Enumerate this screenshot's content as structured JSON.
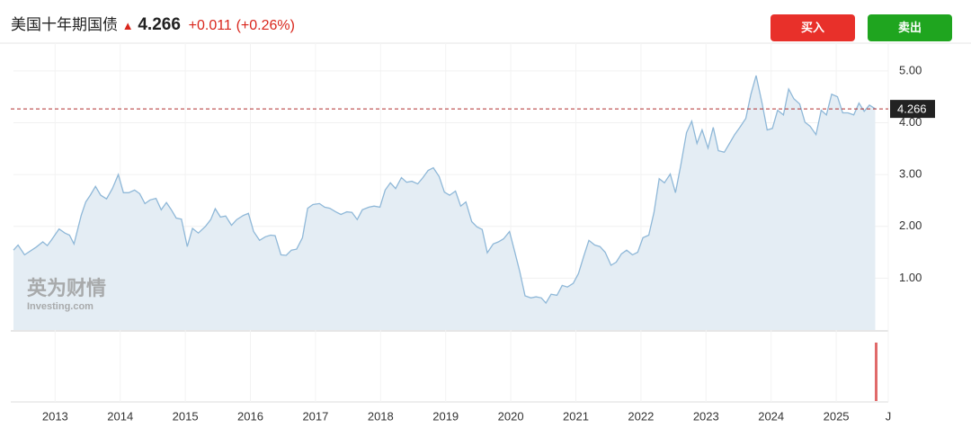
{
  "header": {
    "title": "美国十年期国债",
    "change": "+0.011",
    "change_pct": "(+0.26%)",
    "buy": "买入",
    "sell": "卖出"
  },
  "watermark": {
    "brand": "英为财情",
    "site": "Investing.com"
  },
  "chart_data": {
    "type": "area",
    "color": "#8fb8d8",
    "fill": "#e4edf4",
    "grid": true,
    "last_value": 4.266,
    "xlim": [
      2012.36,
      2025.8
    ],
    "ylim": [
      0,
      5.5
    ],
    "xticks": [
      2013,
      2014,
      2015,
      2016,
      2017,
      2018,
      2019,
      2020,
      2021,
      2022,
      2023,
      2024,
      2025,
      {
        "value": 2025.8,
        "label": "J"
      }
    ],
    "yticks": [
      {
        "value": 1,
        "label": "1.00"
      },
      {
        "value": 2,
        "label": "2.00"
      },
      {
        "value": 3,
        "label": "3.00"
      },
      {
        "value": 4,
        "label": "4.00"
      },
      {
        "value": 5,
        "label": "5.00"
      }
    ],
    "x": [
      2012.36,
      2012.43,
      2012.53,
      2012.71,
      2012.81,
      2012.88,
      2012.94,
      2013.06,
      2013.15,
      2013.22,
      2013.29,
      2013.4,
      2013.47,
      2013.54,
      2013.62,
      2013.7,
      2013.79,
      2013.88,
      2013.97,
      2014.05,
      2014.13,
      2014.22,
      2014.3,
      2014.38,
      2014.46,
      2014.55,
      2014.63,
      2014.71,
      2014.78,
      2014.86,
      2014.94,
      2015.03,
      2015.11,
      2015.2,
      2015.31,
      2015.39,
      2015.46,
      2015.54,
      2015.62,
      2015.71,
      2015.79,
      2015.89,
      2015.97,
      2016.05,
      2016.14,
      2016.23,
      2016.31,
      2016.38,
      2016.47,
      2016.55,
      2016.63,
      2016.71,
      2016.8,
      2016.88,
      2016.96,
      2017.06,
      2017.14,
      2017.22,
      2017.31,
      2017.39,
      2017.48,
      2017.56,
      2017.64,
      2017.72,
      2017.82,
      2017.9,
      2017.99,
      2018.07,
      2018.15,
      2018.23,
      2018.32,
      2018.4,
      2018.48,
      2018.57,
      2018.65,
      2018.73,
      2018.81,
      2018.9,
      2018.98,
      2019.06,
      2019.15,
      2019.23,
      2019.31,
      2019.4,
      2019.48,
      2019.56,
      2019.64,
      2019.73,
      2019.81,
      2019.89,
      2019.98,
      2020.06,
      2020.14,
      2020.22,
      2020.31,
      2020.39,
      2020.47,
      2020.54,
      2020.62,
      2020.71,
      2020.79,
      2020.87,
      2020.96,
      2021.04,
      2021.12,
      2021.2,
      2021.29,
      2021.37,
      2021.45,
      2021.54,
      2021.62,
      2021.7,
      2021.78,
      2021.87,
      2021.95,
      2022.03,
      2022.12,
      2022.2,
      2022.28,
      2022.36,
      2022.45,
      2022.53,
      2022.61,
      2022.7,
      2022.78,
      2022.86,
      2022.94,
      2023.03,
      2023.11,
      2023.19,
      2023.28,
      2023.36,
      2023.44,
      2023.52,
      2023.61,
      2023.69,
      2023.77,
      2023.86,
      2023.94,
      2024.02,
      2024.1,
      2024.19,
      2024.27,
      2024.35,
      2024.44,
      2024.52,
      2024.6,
      2024.69,
      2024.77,
      2024.85,
      2024.93,
      2025.02,
      2025.1,
      2025.18,
      2025.27,
      2025.35,
      2025.43,
      2025.51,
      2025.6
    ],
    "values": [
      1.54,
      1.64,
      1.45,
      1.6,
      1.7,
      1.63,
      1.73,
      1.95,
      1.87,
      1.83,
      1.66,
      2.21,
      2.47,
      2.6,
      2.77,
      2.6,
      2.53,
      2.73,
      3.0,
      2.65,
      2.65,
      2.7,
      2.63,
      2.44,
      2.51,
      2.54,
      2.32,
      2.46,
      2.33,
      2.16,
      2.14,
      1.61,
      1.96,
      1.87,
      2.0,
      2.13,
      2.34,
      2.18,
      2.2,
      2.02,
      2.13,
      2.21,
      2.25,
      1.9,
      1.73,
      1.8,
      1.83,
      1.82,
      1.45,
      1.44,
      1.54,
      1.56,
      1.78,
      2.35,
      2.42,
      2.44,
      2.37,
      2.35,
      2.28,
      2.23,
      2.28,
      2.27,
      2.13,
      2.32,
      2.37,
      2.39,
      2.37,
      2.7,
      2.84,
      2.73,
      2.94,
      2.85,
      2.87,
      2.82,
      2.94,
      3.08,
      3.13,
      2.96,
      2.66,
      2.6,
      2.68,
      2.39,
      2.47,
      2.09,
      1.99,
      1.94,
      1.49,
      1.66,
      1.7,
      1.76,
      1.9,
      1.52,
      1.12,
      0.66,
      0.62,
      0.64,
      0.62,
      0.52,
      0.69,
      0.67,
      0.86,
      0.83,
      0.9,
      1.09,
      1.42,
      1.73,
      1.64,
      1.61,
      1.5,
      1.25,
      1.31,
      1.47,
      1.54,
      1.45,
      1.5,
      1.78,
      1.83,
      2.27,
      2.92,
      2.84,
      3.01,
      2.65,
      3.17,
      3.81,
      4.03,
      3.6,
      3.86,
      3.51,
      3.91,
      3.46,
      3.43,
      3.6,
      3.77,
      3.91,
      4.08,
      4.55,
      4.91,
      4.38,
      3.86,
      3.89,
      4.24,
      4.15,
      4.65,
      4.46,
      4.36,
      4.01,
      3.93,
      3.77,
      4.24,
      4.15,
      4.55,
      4.5,
      4.19,
      4.19,
      4.15,
      4.38,
      4.22,
      4.34,
      4.27
    ]
  }
}
